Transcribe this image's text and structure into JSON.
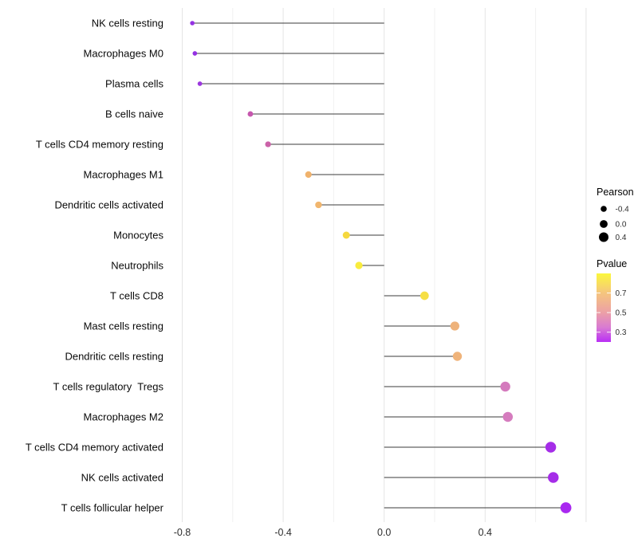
{
  "figure": {
    "background": "#FFFFFF",
    "title": ""
  },
  "chart_data": {
    "type": "lollipop",
    "title": "",
    "xlabel": "",
    "ylabel": "",
    "grid": "vertical-only",
    "x_axis": {
      "range": [
        -0.855,
        0.835
      ],
      "major_ticks": [
        {
          "value": -0.8,
          "label": "-0.8"
        },
        {
          "value": -0.4,
          "label": "-0.4"
        },
        {
          "value": 0.0,
          "label": "0.0"
        },
        {
          "value": 0.4,
          "label": "0.4"
        }
      ],
      "gridline_values": [
        -0.8,
        -0.6,
        -0.4,
        -0.2,
        0.0,
        0.2,
        0.4,
        0.6,
        0.8
      ],
      "baseline": 0.0
    },
    "points": [
      {
        "label": "NK cells resting",
        "pearson": -0.76,
        "pvalue": 0.22,
        "color": "#9431E2"
      },
      {
        "label": "Macrophages M0",
        "pearson": -0.75,
        "pvalue": 0.23,
        "color": "#9431E2"
      },
      {
        "label": "Plasma cells",
        "pearson": -0.73,
        "pvalue": 0.25,
        "color": "#9C38DE"
      },
      {
        "label": "B cells naive",
        "pearson": -0.53,
        "pvalue": 0.38,
        "color": "#C657AE"
      },
      {
        "label": "T cells CD4 memory resting",
        "pearson": -0.46,
        "pvalue": 0.4,
        "color": "#CB62A8"
      },
      {
        "label": "Macrophages M1",
        "pearson": -0.3,
        "pvalue": 0.66,
        "color": "#F0B26C"
      },
      {
        "label": "Dendritic cells activated",
        "pearson": -0.26,
        "pvalue": 0.67,
        "color": "#F1B66E"
      },
      {
        "label": "Monocytes",
        "pearson": -0.15,
        "pvalue": 0.78,
        "color": "#F5D83E"
      },
      {
        "label": "Neutrophils",
        "pearson": -0.1,
        "pvalue": 0.85,
        "color": "#F9EC3D"
      },
      {
        "label": "T cells CD8",
        "pearson": 0.16,
        "pvalue": 0.77,
        "color": "#F6DF45"
      },
      {
        "label": "Mast cells resting",
        "pearson": 0.28,
        "pvalue": 0.63,
        "color": "#EEB27A"
      },
      {
        "label": "Dendritic cells resting",
        "pearson": 0.29,
        "pvalue": 0.63,
        "color": "#EFB37A"
      },
      {
        "label": "T cells regulatory  Tregs",
        "pearson": 0.48,
        "pvalue": 0.36,
        "color": "#D47ABD"
      },
      {
        "label": "Macrophages M2",
        "pearson": 0.49,
        "pvalue": 0.36,
        "color": "#D57CBE"
      },
      {
        "label": "T cells CD4 memory activated",
        "pearson": 0.66,
        "pvalue": 0.25,
        "color": "#A52DE8"
      },
      {
        "label": "NK cells activated",
        "pearson": 0.67,
        "pvalue": 0.25,
        "color": "#A52DE8"
      },
      {
        "label": "T cells follicular helper",
        "pearson": 0.72,
        "pvalue": 0.22,
        "color": "#A928F0"
      }
    ],
    "legend_size": {
      "title": "Pearson",
      "dot_color": "#000000",
      "entries": [
        {
          "value": -0.4,
          "label": "-0.4"
        },
        {
          "value": 0.0,
          "label": "0.0"
        },
        {
          "value": 0.4,
          "label": "0.4"
        }
      ]
    },
    "legend_color": {
      "title": "Pvalue",
      "range": [
        0.2,
        0.9
      ],
      "ticks": [
        {
          "value": 0.7,
          "label": "0.7"
        },
        {
          "value": 0.5,
          "label": "0.5"
        },
        {
          "value": 0.3,
          "label": "0.3"
        }
      ],
      "gradient_stops": [
        {
          "value": 0.9,
          "color": "#FBF73D"
        },
        {
          "value": 0.7,
          "color": "#F5C57E"
        },
        {
          "value": 0.5,
          "color": "#ECA0A6"
        },
        {
          "value": 0.35,
          "color": "#D97BD2"
        },
        {
          "value": 0.2,
          "color": "#B92FF5"
        }
      ]
    },
    "style": {
      "stem_color": "#3B3B3B",
      "gridline_major_color": "#E4E4E4",
      "gridline_minor_color": "#F1F1F1"
    }
  }
}
